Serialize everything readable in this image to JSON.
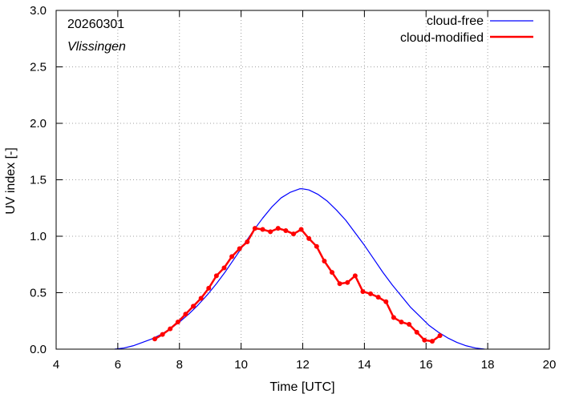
{
  "chart_data": {
    "type": "line",
    "date_label": "20260301",
    "location_label": "Vlissingen",
    "xlabel": "Time  [UTC]",
    "ylabel": "UV index  [-]",
    "xlim": [
      4,
      20
    ],
    "ylim": [
      0,
      3
    ],
    "x_ticks": [
      4,
      6,
      8,
      10,
      12,
      14,
      16,
      18,
      20
    ],
    "y_ticks": [
      0.0,
      0.5,
      1.0,
      1.5,
      2.0,
      2.5,
      3.0
    ],
    "legend_position": "top-right",
    "series": [
      {
        "name": "cloud-free",
        "color": "#0000ff",
        "style": "line",
        "x": [
          5.9,
          6.2,
          6.5,
          6.8,
          7.1,
          7.4,
          7.7,
          8.0,
          8.3,
          8.6,
          8.9,
          9.2,
          9.5,
          9.8,
          10.1,
          10.4,
          10.7,
          11.0,
          11.3,
          11.6,
          11.9,
          12.0,
          12.2,
          12.5,
          12.8,
          13.1,
          13.4,
          13.7,
          14.0,
          14.3,
          14.6,
          14.9,
          15.2,
          15.5,
          15.8,
          16.1,
          16.4,
          16.7,
          17.0,
          17.3,
          17.6,
          17.9
        ],
        "y": [
          0.0,
          0.01,
          0.03,
          0.06,
          0.09,
          0.13,
          0.18,
          0.24,
          0.31,
          0.39,
          0.48,
          0.58,
          0.69,
          0.81,
          0.93,
          1.05,
          1.16,
          1.26,
          1.34,
          1.39,
          1.42,
          1.42,
          1.41,
          1.37,
          1.31,
          1.23,
          1.14,
          1.03,
          0.92,
          0.8,
          0.68,
          0.57,
          0.47,
          0.37,
          0.29,
          0.21,
          0.15,
          0.1,
          0.06,
          0.03,
          0.01,
          0.0
        ]
      },
      {
        "name": "cloud-modified",
        "color": "#ff0000",
        "style": "line-points",
        "x": [
          7.2,
          7.45,
          7.7,
          7.95,
          8.2,
          8.45,
          8.7,
          8.95,
          9.2,
          9.45,
          9.7,
          9.95,
          10.2,
          10.45,
          10.7,
          10.95,
          11.2,
          11.45,
          11.7,
          11.95,
          12.2,
          12.45,
          12.7,
          12.95,
          13.2,
          13.45,
          13.7,
          13.95,
          14.2,
          14.45,
          14.7,
          14.95,
          15.2,
          15.45,
          15.7,
          15.95,
          16.2,
          16.45
        ],
        "y": [
          0.09,
          0.13,
          0.18,
          0.24,
          0.31,
          0.38,
          0.45,
          0.54,
          0.65,
          0.72,
          0.82,
          0.89,
          0.95,
          1.07,
          1.06,
          1.04,
          1.07,
          1.05,
          1.02,
          1.06,
          0.98,
          0.91,
          0.78,
          0.68,
          0.58,
          0.59,
          0.65,
          0.51,
          0.49,
          0.46,
          0.42,
          0.28,
          0.24,
          0.22,
          0.15,
          0.08,
          0.07,
          0.12
        ]
      }
    ]
  }
}
